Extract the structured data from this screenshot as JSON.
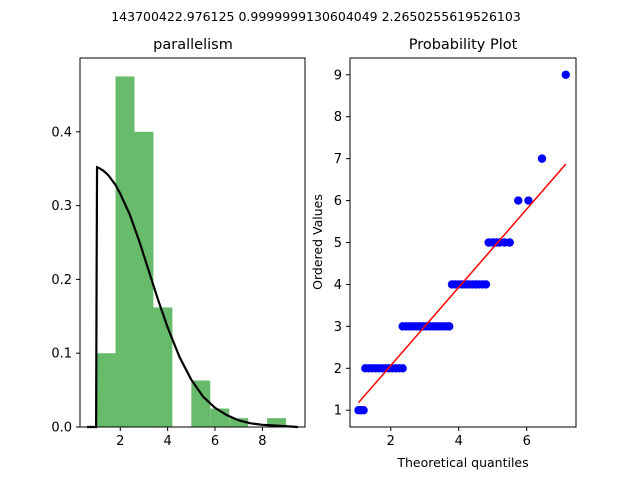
{
  "figure": {
    "suptitle": "143700422.976125 0.9999999130604049 2.2650255619526103"
  },
  "chart_data": [
    {
      "type": "bar",
      "subtype": "histogram_with_pdf",
      "title": "parallelism",
      "xlabel": "",
      "ylabel": "",
      "xlim": [
        0.3,
        9.8
      ],
      "ylim": [
        0,
        0.5
      ],
      "xticks": [
        2,
        4,
        6,
        8
      ],
      "yticks": [
        0.0,
        0.1,
        0.2,
        0.3,
        0.4
      ],
      "ytick_labels": [
        "0.0",
        "0.1",
        "0.2",
        "0.3",
        "0.4"
      ],
      "bar_color": "#4caf50",
      "bins": [
        {
          "x0": 1.0,
          "x1": 1.8,
          "density": 0.1
        },
        {
          "x0": 1.8,
          "x1": 2.6,
          "density": 0.475
        },
        {
          "x0": 2.6,
          "x1": 3.4,
          "density": 0.4
        },
        {
          "x0": 3.4,
          "x1": 4.2,
          "density": 0.162
        },
        {
          "x0": 4.2,
          "x1": 5.0,
          "density": 0.0
        },
        {
          "x0": 5.0,
          "x1": 5.8,
          "density": 0.063
        },
        {
          "x0": 5.8,
          "x1": 6.6,
          "density": 0.025
        },
        {
          "x0": 6.6,
          "x1": 7.4,
          "density": 0.012
        },
        {
          "x0": 7.4,
          "x1": 8.2,
          "density": 0.0
        },
        {
          "x0": 8.2,
          "x1": 9.0,
          "density": 0.012
        }
      ],
      "pdf_curve": {
        "color": "#000000",
        "x": [
          0.6,
          0.9,
          0.98,
          1.0,
          1.02,
          1.1,
          1.3,
          1.5,
          1.8,
          2.0,
          2.4,
          2.8,
          3.2,
          3.6,
          4.0,
          4.5,
          5.0,
          5.5,
          6.0,
          6.5,
          7.0,
          7.5,
          8.0,
          8.5,
          9.0,
          9.5
        ],
        "y": [
          0.0,
          0.0,
          0.0,
          0.2,
          0.352,
          0.351,
          0.347,
          0.341,
          0.328,
          0.316,
          0.288,
          0.252,
          0.212,
          0.172,
          0.135,
          0.095,
          0.064,
          0.041,
          0.026,
          0.016,
          0.009,
          0.005,
          0.003,
          0.002,
          0.001,
          0.0
        ]
      }
    },
    {
      "type": "scatter",
      "title": "Probability Plot",
      "xlabel": "Theoretical quantiles",
      "ylabel": "Ordered Values",
      "xlim": [
        0.8,
        7.45
      ],
      "ylim": [
        0.6,
        9.4
      ],
      "xticks": [
        2,
        4,
        6
      ],
      "yticks": [
        1,
        2,
        3,
        4,
        5,
        6,
        7,
        8,
        9
      ],
      "marker_color": "#0000ff",
      "points": [
        {
          "x": 1.05,
          "y": 1
        },
        {
          "x": 1.12,
          "y": 1
        },
        {
          "x": 1.2,
          "y": 1
        },
        {
          "x": 1.25,
          "y": 2
        },
        {
          "x": 1.35,
          "y": 2
        },
        {
          "x": 1.45,
          "y": 2
        },
        {
          "x": 1.55,
          "y": 2
        },
        {
          "x": 1.65,
          "y": 2
        },
        {
          "x": 1.75,
          "y": 2
        },
        {
          "x": 1.85,
          "y": 2
        },
        {
          "x": 1.95,
          "y": 2
        },
        {
          "x": 2.05,
          "y": 2
        },
        {
          "x": 2.15,
          "y": 2
        },
        {
          "x": 2.25,
          "y": 2
        },
        {
          "x": 2.35,
          "y": 2
        },
        {
          "x": 2.35,
          "y": 3
        },
        {
          "x": 2.45,
          "y": 3
        },
        {
          "x": 2.55,
          "y": 3
        },
        {
          "x": 2.65,
          "y": 3
        },
        {
          "x": 2.75,
          "y": 3
        },
        {
          "x": 2.85,
          "y": 3
        },
        {
          "x": 2.95,
          "y": 3
        },
        {
          "x": 3.05,
          "y": 3
        },
        {
          "x": 3.15,
          "y": 3
        },
        {
          "x": 3.25,
          "y": 3
        },
        {
          "x": 3.35,
          "y": 3
        },
        {
          "x": 3.45,
          "y": 3
        },
        {
          "x": 3.55,
          "y": 3
        },
        {
          "x": 3.65,
          "y": 3
        },
        {
          "x": 3.72,
          "y": 3
        },
        {
          "x": 3.8,
          "y": 4
        },
        {
          "x": 3.9,
          "y": 4
        },
        {
          "x": 4.0,
          "y": 4
        },
        {
          "x": 4.1,
          "y": 4
        },
        {
          "x": 4.2,
          "y": 4
        },
        {
          "x": 4.3,
          "y": 4
        },
        {
          "x": 4.4,
          "y": 4
        },
        {
          "x": 4.5,
          "y": 4
        },
        {
          "x": 4.6,
          "y": 4
        },
        {
          "x": 4.7,
          "y": 4
        },
        {
          "x": 4.8,
          "y": 4
        },
        {
          "x": 4.88,
          "y": 5
        },
        {
          "x": 5.0,
          "y": 5
        },
        {
          "x": 5.1,
          "y": 5
        },
        {
          "x": 5.2,
          "y": 5
        },
        {
          "x": 5.35,
          "y": 5
        },
        {
          "x": 5.5,
          "y": 5
        },
        {
          "x": 5.75,
          "y": 6
        },
        {
          "x": 6.05,
          "y": 6
        },
        {
          "x": 6.45,
          "y": 7
        },
        {
          "x": 7.15,
          "y": 9
        }
      ],
      "fit_line": {
        "color": "#ff0000",
        "x": [
          1.05,
          7.15
        ],
        "y": [
          1.18,
          6.87
        ]
      }
    }
  ]
}
